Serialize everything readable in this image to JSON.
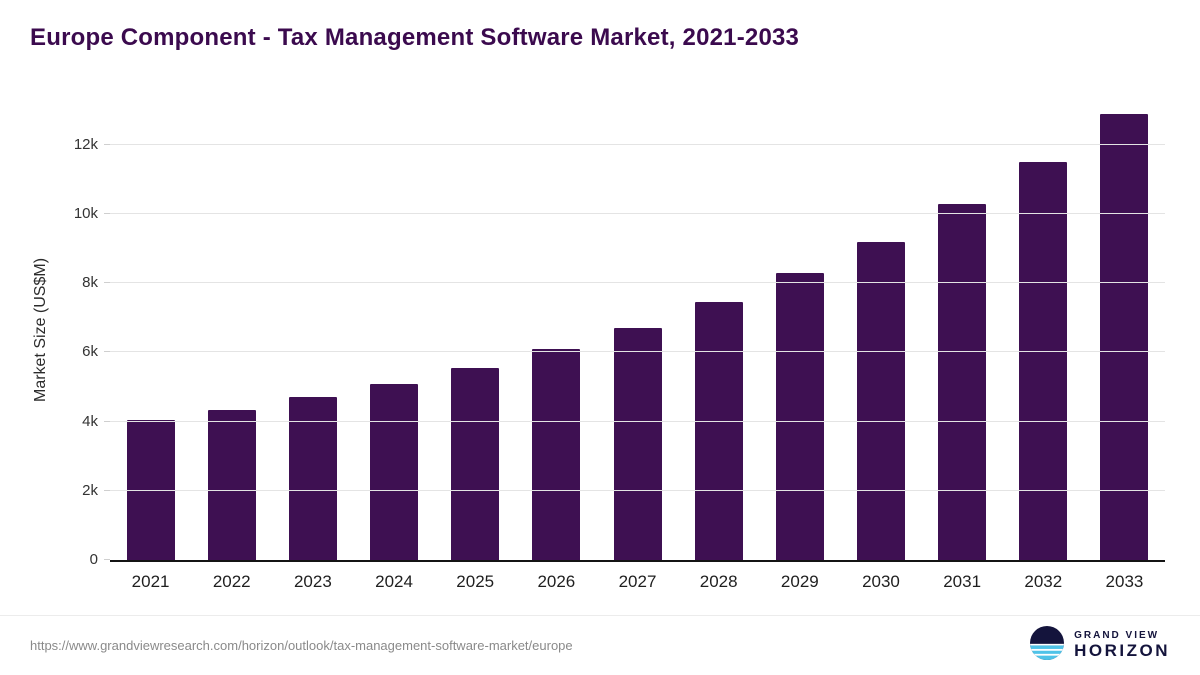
{
  "title": "Europe Component - Tax Management Software Market, 2021-2033",
  "colors": {
    "bar": "#3E1052",
    "title": "#3B0A4E",
    "axis_text": "#333333",
    "gridline": "#e4e4e4",
    "logo_navy": "#14143C",
    "logo_blue": "#4FC3E8"
  },
  "chart_data": {
    "type": "bar",
    "title": "Europe Component - Tax Management Software Market, 2021-2033",
    "categories": [
      "2021",
      "2022",
      "2023",
      "2024",
      "2025",
      "2026",
      "2027",
      "2028",
      "2029",
      "2030",
      "2031",
      "2032",
      "2033"
    ],
    "values": [
      4050,
      4350,
      4700,
      5100,
      5550,
      6100,
      6700,
      7450,
      8300,
      9200,
      10300,
      11500,
      12900
    ],
    "xlabel": "",
    "ylabel": "Market Size (US$M)",
    "ylim": [
      0,
      13300
    ],
    "yticks": [
      0,
      2000,
      4000,
      6000,
      8000,
      10000,
      12000
    ],
    "ytick_labels": [
      "0",
      "2k",
      "4k",
      "6k",
      "8k",
      "10k",
      "12k"
    ],
    "grid": true,
    "legend": false,
    "bar_color": "#3E1052"
  },
  "footer": {
    "source_url": "https://www.grandviewresearch.com/horizon/outlook/tax-management-software-market/europe",
    "logo_top": "GRAND VIEW",
    "logo_bottom": "HORIZON"
  }
}
